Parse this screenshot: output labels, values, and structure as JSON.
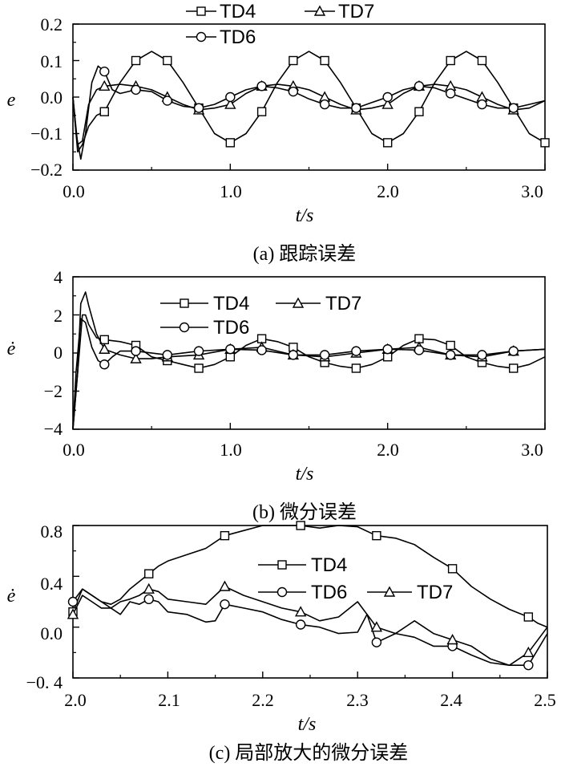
{
  "figure": {
    "captions": [
      "(a) 跟踪误差",
      "(b) 微分误差",
      "(c) 局部放大的微分误差"
    ]
  },
  "chart_data": [
    {
      "type": "line",
      "panel": "a",
      "caption": "(a) 跟踪误差",
      "xlabel": "t/s",
      "ylabel": "e",
      "xlim": [
        0,
        3.0
      ],
      "ylim": [
        -0.2,
        0.2
      ],
      "xticks": [
        "0.0",
        "1.0",
        "2.0",
        "3.0"
      ],
      "yticks": [
        "0.2",
        "0.1",
        "0.0",
        "−0.1",
        "−0.2"
      ],
      "legend": [
        "TD4",
        "TD7",
        "TD6"
      ],
      "series": [
        {
          "name": "TD4",
          "marker": "square",
          "x": [
            0,
            0.03,
            0.06,
            0.1,
            0.15,
            0.2,
            0.3,
            0.4,
            0.5,
            0.6,
            0.7,
            0.8,
            0.9,
            1.0,
            1.1,
            1.2,
            1.3,
            1.4,
            1.5,
            1.6,
            1.7,
            1.8,
            1.9,
            2.0,
            2.1,
            2.2,
            2.3,
            2.4,
            2.5,
            2.6,
            2.7,
            2.8,
            2.9,
            3.0
          ],
          "y": [
            0,
            -0.15,
            -0.13,
            -0.08,
            -0.05,
            -0.04,
            0.04,
            0.1,
            0.125,
            0.1,
            0.04,
            -0.03,
            -0.1,
            -0.125,
            -0.1,
            -0.04,
            0.04,
            0.1,
            0.125,
            0.1,
            0.04,
            -0.03,
            -0.1,
            -0.125,
            -0.1,
            -0.04,
            0.04,
            0.1,
            0.125,
            0.1,
            0.04,
            -0.03,
            -0.1,
            -0.125
          ],
          "markers_x": [
            0.2,
            0.4,
            0.6,
            0.8,
            1.0,
            1.2,
            1.4,
            1.6,
            1.8,
            2.0,
            2.2,
            2.4,
            2.6,
            2.8,
            3.0
          ]
        },
        {
          "name": "TD7",
          "marker": "triangle",
          "x": [
            0,
            0.03,
            0.06,
            0.1,
            0.15,
            0.2,
            0.3,
            0.4,
            0.5,
            0.6,
            0.7,
            0.8,
            0.9,
            1.0,
            1.1,
            1.2,
            1.3,
            1.4,
            1.5,
            1.6,
            1.7,
            1.8,
            1.9,
            2.0,
            2.1,
            2.2,
            2.3,
            2.4,
            2.5,
            2.6,
            2.7,
            2.8,
            2.9,
            3.0
          ],
          "y": [
            0,
            -0.13,
            -0.12,
            -0.02,
            0.02,
            0.03,
            0.035,
            0.03,
            0.02,
            0.0,
            -0.02,
            -0.035,
            -0.03,
            -0.02,
            0.01,
            0.03,
            0.035,
            0.03,
            0.02,
            0.0,
            -0.02,
            -0.035,
            -0.03,
            -0.02,
            0.01,
            0.03,
            0.035,
            0.03,
            0.02,
            0.0,
            -0.02,
            -0.035,
            -0.03,
            -0.01
          ],
          "markers_x": [
            0.2,
            0.4,
            0.6,
            0.8,
            1.0,
            1.2,
            1.4,
            1.6,
            1.8,
            2.0,
            2.2,
            2.4,
            2.6,
            2.8
          ]
        },
        {
          "name": "TD6",
          "marker": "circle",
          "x": [
            0,
            0.02,
            0.05,
            0.08,
            0.12,
            0.16,
            0.2,
            0.25,
            0.3,
            0.4,
            0.5,
            0.6,
            0.7,
            0.8,
            0.9,
            1.0,
            1.1,
            1.2,
            1.3,
            1.4,
            1.5,
            1.6,
            1.7,
            1.8,
            1.9,
            2.0,
            2.1,
            2.2,
            2.3,
            2.4,
            2.5,
            2.6,
            2.7,
            2.8,
            2.9,
            3.0
          ],
          "y": [
            0,
            -0.1,
            -0.17,
            -0.1,
            0.04,
            0.085,
            0.07,
            0.02,
            0.01,
            0.02,
            0.015,
            -0.01,
            -0.025,
            -0.03,
            -0.02,
            0.0,
            0.02,
            0.03,
            0.025,
            0.015,
            -0.005,
            -0.02,
            -0.03,
            -0.03,
            -0.015,
            0.0,
            0.02,
            0.03,
            0.025,
            0.01,
            -0.005,
            -0.02,
            -0.03,
            -0.03,
            -0.02,
            -0.01
          ],
          "markers_x": [
            0.2,
            0.4,
            0.6,
            0.8,
            1.0,
            1.2,
            1.4,
            1.6,
            1.8,
            2.0,
            2.2,
            2.4,
            2.6,
            2.8
          ]
        }
      ]
    },
    {
      "type": "line",
      "panel": "b",
      "caption": "(b) 微分误差",
      "xlabel": "t/s",
      "ylabel": "ė",
      "xlim": [
        0,
        3.0
      ],
      "ylim": [
        -4,
        4
      ],
      "xticks": [
        "0.0",
        "1.0",
        "2.0",
        "3.0"
      ],
      "yticks": [
        "4",
        "2",
        "0",
        "−2",
        "−4"
      ],
      "legend": [
        "TD4",
        "TD7",
        "TD6"
      ],
      "series": [
        {
          "name": "TD4",
          "marker": "square",
          "x": [
            0,
            0.03,
            0.06,
            0.08,
            0.1,
            0.15,
            0.2,
            0.3,
            0.4,
            0.5,
            0.6,
            0.7,
            0.8,
            0.9,
            1.0,
            1.1,
            1.2,
            1.3,
            1.4,
            1.5,
            1.6,
            1.7,
            1.8,
            1.9,
            2.0,
            2.1,
            2.2,
            2.3,
            2.4,
            2.5,
            2.6,
            2.7,
            2.8,
            2.9,
            3.0
          ],
          "y": [
            -4,
            -1,
            2,
            2.0,
            1.5,
            0.8,
            0.7,
            0.6,
            0.4,
            -0.2,
            -0.4,
            -0.6,
            -0.8,
            -0.6,
            -0.2,
            0.4,
            0.75,
            0.6,
            0.3,
            -0.2,
            -0.5,
            -0.7,
            -0.8,
            -0.6,
            -0.2,
            0.4,
            0.75,
            0.7,
            0.4,
            -0.2,
            -0.5,
            -0.7,
            -0.8,
            -0.6,
            -0.2
          ],
          "markers_x": [
            0.2,
            0.4,
            0.6,
            0.8,
            1.0,
            1.2,
            1.4,
            1.6,
            1.8,
            2.0,
            2.2,
            2.4,
            2.6,
            2.8
          ]
        },
        {
          "name": "TD7",
          "marker": "triangle",
          "x": [
            0,
            0.03,
            0.05,
            0.08,
            0.1,
            0.15,
            0.2,
            0.3,
            0.4,
            0.5,
            0.6,
            0.8,
            1.0,
            1.2,
            1.4,
            1.6,
            1.8,
            2.0,
            2.2,
            2.4,
            2.6,
            2.8,
            3.0
          ],
          "y": [
            -4,
            -1,
            2.6,
            3.2,
            2.5,
            1.0,
            0.2,
            -0.1,
            -0.3,
            -0.3,
            -0.2,
            -0.1,
            0.2,
            0.3,
            -0.1,
            -0.2,
            0.0,
            0.2,
            0.3,
            -0.1,
            -0.2,
            0.1,
            0.2
          ],
          "markers_x": [
            0.2,
            0.4,
            0.6,
            0.8,
            1.0,
            1.2,
            1.4,
            1.6,
            1.8,
            2.0,
            2.2,
            2.4,
            2.6,
            2.8
          ]
        },
        {
          "name": "TD6",
          "marker": "circle",
          "x": [
            0,
            0.02,
            0.05,
            0.08,
            0.12,
            0.16,
            0.2,
            0.25,
            0.3,
            0.4,
            0.6,
            0.8,
            1.0,
            1.2,
            1.4,
            1.6,
            1.8,
            2.0,
            2.2,
            2.4,
            2.6,
            2.8,
            3.0
          ],
          "y": [
            -4,
            -1,
            1.8,
            1.6,
            0.3,
            -0.4,
            -0.6,
            -0.2,
            0.1,
            0.1,
            -0.1,
            0.1,
            0.2,
            0.15,
            -0.1,
            -0.1,
            0.1,
            0.2,
            0.15,
            -0.1,
            -0.1,
            0.1,
            0.2
          ],
          "markers_x": [
            0.2,
            0.4,
            0.6,
            0.8,
            1.0,
            1.2,
            1.4,
            1.6,
            1.8,
            2.0,
            2.2,
            2.4,
            2.6,
            2.8
          ]
        }
      ]
    },
    {
      "type": "line",
      "panel": "c",
      "caption": "(c) 局部放大的微分误差",
      "xlabel": "t/s",
      "ylabel": "ė",
      "xlim": [
        2.0,
        2.5
      ],
      "ylim": [
        -0.4,
        0.8
      ],
      "xticks": [
        "2.0",
        "2.1",
        "2.2",
        "2.3",
        "2.4",
        "2.5"
      ],
      "yticks": [
        "0.8",
        "0.4",
        "0.0",
        "−0. 4"
      ],
      "legend": [
        "TD4",
        "TD6",
        "TD7"
      ],
      "series": [
        {
          "name": "TD4",
          "marker": "square",
          "x": [
            2.0,
            2.01,
            2.02,
            2.03,
            2.04,
            2.05,
            2.06,
            2.07,
            2.08,
            2.09,
            2.1,
            2.12,
            2.14,
            2.16,
            2.18,
            2.2,
            2.22,
            2.24,
            2.26,
            2.28,
            2.3,
            2.32,
            2.34,
            2.36,
            2.38,
            2.4,
            2.42,
            2.44,
            2.46,
            2.48,
            2.49,
            2.5
          ],
          "y": [
            0.12,
            0.3,
            0.25,
            0.2,
            0.18,
            0.22,
            0.3,
            0.36,
            0.42,
            0.48,
            0.52,
            0.57,
            0.62,
            0.72,
            0.76,
            0.8,
            0.8,
            0.8,
            0.78,
            0.8,
            0.79,
            0.72,
            0.7,
            0.65,
            0.55,
            0.46,
            0.32,
            0.22,
            0.14,
            0.08,
            0.03,
            0.0
          ],
          "markers_x": [
            2.0,
            2.08,
            2.16,
            2.24,
            2.32,
            2.4,
            2.48
          ]
        },
        {
          "name": "TD6",
          "marker": "circle",
          "x": [
            2.0,
            2.01,
            2.02,
            2.03,
            2.04,
            2.05,
            2.06,
            2.07,
            2.08,
            2.09,
            2.1,
            2.12,
            2.14,
            2.15,
            2.16,
            2.18,
            2.2,
            2.22,
            2.24,
            2.26,
            2.28,
            2.3,
            2.31,
            2.32,
            2.34,
            2.36,
            2.38,
            2.4,
            2.42,
            2.44,
            2.46,
            2.48,
            2.5
          ],
          "y": [
            0.2,
            0.3,
            0.25,
            0.2,
            0.15,
            0.1,
            0.2,
            0.18,
            0.22,
            0.2,
            0.12,
            0.1,
            0.04,
            0.05,
            0.18,
            0.15,
            0.12,
            0.06,
            0.02,
            0.0,
            -0.05,
            -0.04,
            0.1,
            -0.12,
            -0.05,
            -0.08,
            -0.15,
            -0.15,
            -0.22,
            -0.28,
            -0.3,
            -0.3,
            -0.05
          ],
          "markers_x": [
            2.0,
            2.08,
            2.16,
            2.24,
            2.32,
            2.4,
            2.48
          ]
        },
        {
          "name": "TD7",
          "marker": "triangle",
          "x": [
            2.0,
            2.01,
            2.02,
            2.03,
            2.04,
            2.05,
            2.06,
            2.07,
            2.08,
            2.09,
            2.1,
            2.12,
            2.14,
            2.16,
            2.18,
            2.2,
            2.22,
            2.24,
            2.26,
            2.28,
            2.3,
            2.32,
            2.34,
            2.36,
            2.38,
            2.4,
            2.42,
            2.44,
            2.46,
            2.48,
            2.5
          ],
          "y": [
            0.1,
            0.25,
            0.2,
            0.15,
            0.15,
            0.2,
            0.22,
            0.25,
            0.3,
            0.28,
            0.22,
            0.2,
            0.18,
            0.32,
            0.25,
            0.2,
            0.15,
            0.12,
            0.05,
            0.08,
            0.2,
            0.0,
            -0.05,
            0.05,
            -0.05,
            -0.1,
            -0.15,
            -0.25,
            -0.3,
            -0.2,
            0.0
          ],
          "markers_x": [
            2.0,
            2.08,
            2.16,
            2.24,
            2.32,
            2.4,
            2.48
          ]
        }
      ]
    }
  ]
}
